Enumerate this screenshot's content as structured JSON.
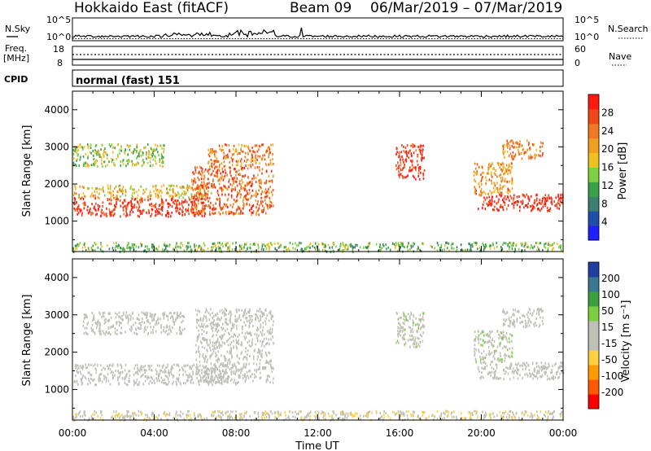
{
  "title": {
    "station": "Hokkaido East (fitACF)",
    "beam": "Beam 09",
    "dates": "06/Mar/2019 – 07/Mar/2019"
  },
  "header_panels": {
    "nsky_label": "N.Sky",
    "nsearch_label": "N.Search",
    "noise_ticks": [
      "10^5",
      "10^0"
    ],
    "freq_label": "Freq.",
    "freq_unit": "[MHz]",
    "freq_ticks": [
      "18",
      "8"
    ],
    "nave_label": "Nave",
    "nave_ticks": [
      "60",
      "0"
    ],
    "cpid_label": "CPID",
    "cpid_value": "normal (fast) 151"
  },
  "x_axis": {
    "label": "Time UT",
    "ticks": [
      "00:00",
      "04:00",
      "08:00",
      "12:00",
      "16:00",
      "20:00",
      "00:00"
    ]
  },
  "colors": {
    "power": [
      "#1f1fff",
      "#1f4fa8",
      "#3a7f70",
      "#3aa14a",
      "#7fd040",
      "#f0c020",
      "#f0a020",
      "#f07820",
      "#f04818",
      "#ff1a10"
    ],
    "velocity": [
      "#ff0000",
      "#ff5a00",
      "#ff9a00",
      "#ffd040",
      "#c0c0b8",
      "#c0c0b8",
      "#7cd040",
      "#3aa040",
      "#3a7890",
      "#2040a0"
    ]
  },
  "chart_data": [
    {
      "type": "heatmap",
      "name": "power",
      "xlabel": "",
      "ylabel": "Slant Range [km]",
      "xlim": [
        0,
        24
      ],
      "ylim": [
        180,
        4500
      ],
      "yticks": [
        1000,
        2000,
        3000,
        4000
      ],
      "colorbar": {
        "label": "Power [dB]",
        "ticks": [
          "28",
          "24",
          "20",
          "16",
          "12",
          "8",
          "4"
        ],
        "range": [
          0,
          30
        ]
      },
      "regions": [
        {
          "t0": 0.0,
          "t1": 6.5,
          "r0": 1150,
          "r1": 1650,
          "value": 28
        },
        {
          "t0": 0.0,
          "t1": 6.5,
          "r0": 1650,
          "r1": 2000,
          "value": 18
        },
        {
          "t0": 5.8,
          "t1": 9.8,
          "r0": 1200,
          "r1": 2500,
          "value": 24
        },
        {
          "t0": 6.6,
          "t1": 9.8,
          "r0": 2500,
          "r1": 3100,
          "value": 22
        },
        {
          "t0": 0.0,
          "t1": 4.5,
          "r0": 2500,
          "r1": 3100,
          "value": 14
        },
        {
          "t0": 15.8,
          "t1": 17.2,
          "r0": 2150,
          "r1": 3100,
          "value": 28
        },
        {
          "t0": 19.8,
          "t1": 24.0,
          "r0": 1300,
          "r1": 1750,
          "value": 28
        },
        {
          "t0": 19.6,
          "t1": 21.5,
          "r0": 1750,
          "r1": 2600,
          "value": 20
        },
        {
          "t0": 21.0,
          "t1": 23.0,
          "r0": 2700,
          "r1": 3200,
          "value": 22
        },
        {
          "t0": 0.0,
          "t1": 24.0,
          "r0": 200,
          "r1": 450,
          "value": 12
        }
      ]
    },
    {
      "type": "heatmap",
      "name": "velocity",
      "xlabel": "Time UT",
      "ylabel": "Slant Range [km]",
      "xlim": [
        0,
        24
      ],
      "ylim": [
        180,
        4500
      ],
      "yticks": [
        1000,
        2000,
        3000,
        4000
      ],
      "colorbar": {
        "label": "Velocity [m s⁻¹]",
        "ticks": [
          "200",
          "100",
          "50",
          "15",
          "-15",
          "-50",
          "-100",
          "-200"
        ],
        "range": [
          -250,
          250
        ]
      },
      "regions": [
        {
          "t0": 0.0,
          "t1": 8.0,
          "r0": 1150,
          "r1": 1700,
          "value": 0
        },
        {
          "t0": 6.0,
          "t1": 9.8,
          "r0": 1200,
          "r1": 3200,
          "value": 0
        },
        {
          "t0": 0.5,
          "t1": 5.5,
          "r0": 2500,
          "r1": 3100,
          "value": 0
        },
        {
          "t0": 15.8,
          "t1": 17.2,
          "r0": 2150,
          "r1": 3100,
          "value": 30
        },
        {
          "t0": 19.8,
          "t1": 24.0,
          "r0": 1300,
          "r1": 1750,
          "value": 0
        },
        {
          "t0": 19.6,
          "t1": 21.5,
          "r0": 1750,
          "r1": 2600,
          "value": 30
        },
        {
          "t0": 21.0,
          "t1": 23.0,
          "r0": 2700,
          "r1": 3200,
          "value": 10
        },
        {
          "t0": 0.0,
          "t1": 24.0,
          "r0": 200,
          "r1": 450,
          "value": -40
        }
      ]
    }
  ]
}
